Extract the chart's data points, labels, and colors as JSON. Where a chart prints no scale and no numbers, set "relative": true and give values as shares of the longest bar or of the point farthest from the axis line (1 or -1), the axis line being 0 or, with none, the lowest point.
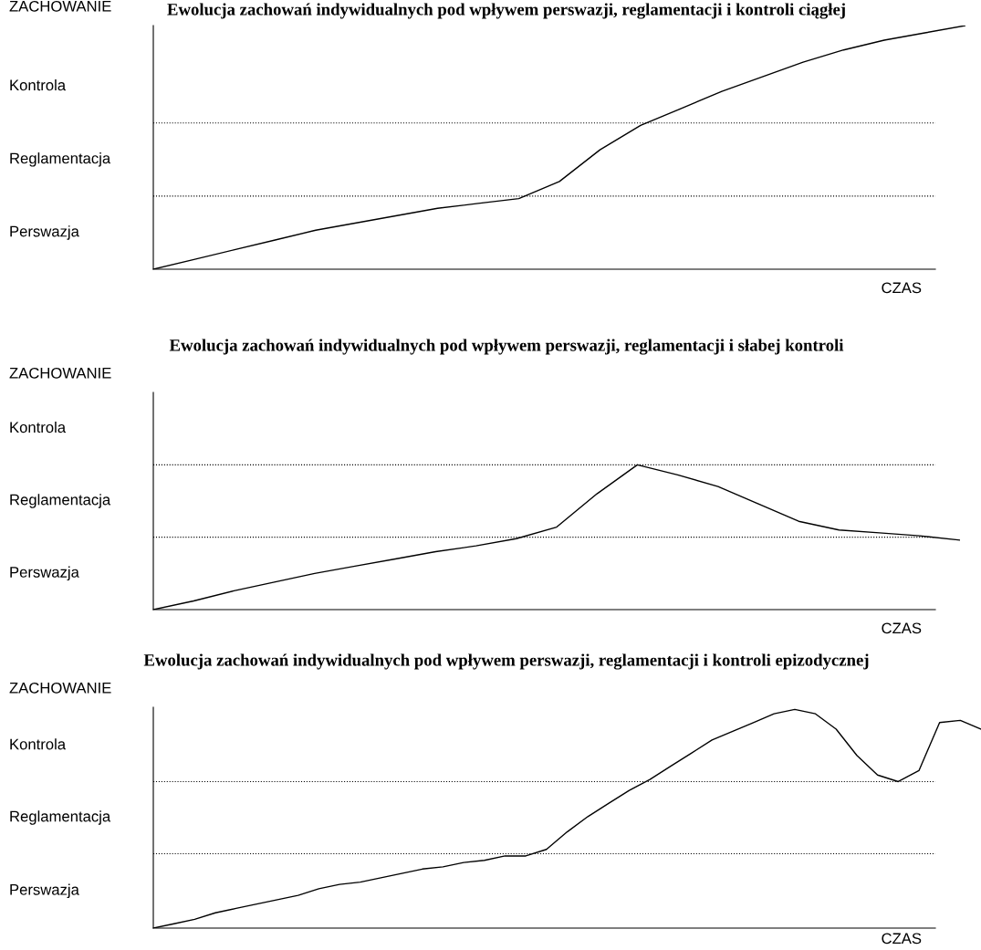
{
  "chart_data": [
    {
      "type": "line",
      "title": "Ewolucja zachowań indywidualnych pod wpływem perswazji, reglamentacji i kontroli ciągłej",
      "xlabel": "CZAS",
      "ylabel": "ZACHOWANIE",
      "relative": true,
      "color": "#000000",
      "line_style": "solid",
      "marker": "none",
      "grid": false,
      "legend": false,
      "categories": [
        null,
        null,
        null,
        null,
        null,
        null,
        null,
        null,
        null,
        null,
        null,
        null,
        null,
        null,
        null,
        null,
        null,
        null,
        null,
        null,
        null
      ],
      "values": [
        0,
        0.04,
        0.08,
        0.12,
        0.16,
        0.19,
        0.22,
        0.25,
        0.27,
        0.29,
        0.36,
        0.49,
        0.59,
        0.66,
        0.73,
        0.79,
        0.85,
        0.9,
        0.94,
        0.97,
        1
      ],
      "annotations": [
        "Perswazja",
        "Reglamentacja",
        "Kontrola"
      ],
      "ref_lines": [
        {
          "axis": "y",
          "value": 0.3,
          "line_style": "dotted",
          "color": "#000000"
        },
        {
          "axis": "y",
          "value": 0.6,
          "line_style": "dotted",
          "color": "#000000"
        }
      ]
    },
    {
      "type": "line",
      "title": "Ewolucja zachowań indywidualnych pod wpływem perswazji, reglamentacji i słabej kontroli",
      "xlabel": "CZAS",
      "ylabel": "ZACHOWANIE",
      "relative": true,
      "color": "#000000",
      "line_style": "solid",
      "marker": "none",
      "grid": false,
      "legend": false,
      "categories": [
        null,
        null,
        null,
        null,
        null,
        null,
        null,
        null,
        null,
        null,
        null,
        null,
        null,
        null,
        null,
        null,
        null,
        null,
        null,
        null,
        null
      ],
      "values": [
        0,
        0.06,
        0.13,
        0.19,
        0.25,
        0.3,
        0.35,
        0.4,
        0.44,
        0.49,
        0.57,
        0.8,
        1,
        0.93,
        0.85,
        0.73,
        0.61,
        0.55,
        0.53,
        0.51,
        0.48
      ],
      "annotations": [
        "Perswazja",
        "Reglamentacja",
        "Kontrola"
      ],
      "ref_lines": [
        {
          "axis": "y",
          "value": 0.5,
          "line_style": "dotted",
          "color": "#000000"
        },
        {
          "axis": "y",
          "value": 1,
          "line_style": "dotted",
          "color": "#000000"
        }
      ]
    },
    {
      "type": "line",
      "title": "Ewolucja zachowań indywidualnych pod wpływem perswazji, reglamentacji i kontroli epizodycznej",
      "xlabel": "CZAS",
      "ylabel": "ZACHOWANIE",
      "relative": true,
      "color": "#000000",
      "line_style": "solid",
      "marker": "none",
      "grid": false,
      "legend": false,
      "categories": [
        null,
        null,
        null,
        null,
        null,
        null,
        null,
        null,
        null,
        null,
        null,
        null,
        null,
        null,
        null,
        null,
        null,
        null,
        null,
        null,
        null,
        null,
        null,
        null,
        null,
        null,
        null,
        null,
        null,
        null,
        null,
        null,
        null,
        null,
        null,
        null,
        null,
        null,
        null,
        null,
        null
      ],
      "values": [
        0,
        0.02,
        0.04,
        0.07,
        0.09,
        0.11,
        0.13,
        0.15,
        0.18,
        0.2,
        0.21,
        0.23,
        0.25,
        0.27,
        0.28,
        0.3,
        0.31,
        0.33,
        0.33,
        0.36,
        0.44,
        0.51,
        0.57,
        0.63,
        0.68,
        0.74,
        0.8,
        0.86,
        0.9,
        0.94,
        0.98,
        1,
        0.98,
        0.91,
        0.79,
        0.7,
        0.67,
        0.72,
        0.94,
        0.95,
        0.91
      ],
      "annotations": [
        "Perswazja",
        "Reglamentacja",
        "Kontrola"
      ],
      "ref_lines": [
        {
          "axis": "y",
          "value": 0.34,
          "line_style": "dotted",
          "color": "#000000"
        },
        {
          "axis": "y",
          "value": 0.67,
          "line_style": "dotted",
          "color": "#000000"
        }
      ]
    }
  ]
}
